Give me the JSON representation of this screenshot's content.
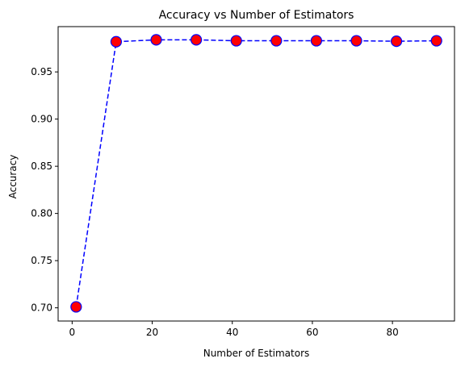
{
  "chart_data": {
    "type": "line",
    "title": "Accuracy vs Number of Estimators",
    "xlabel": "Number of Estimators",
    "ylabel": "Accuracy",
    "x": [
      1,
      11,
      21,
      31,
      41,
      51,
      61,
      71,
      81,
      91
    ],
    "series": [
      {
        "values": [
          0.701,
          0.982,
          0.984,
          0.984,
          0.983,
          0.983,
          0.983,
          0.983,
          0.9825,
          0.983
        ]
      }
    ],
    "xlim": [
      -3.5,
      95.5
    ],
    "ylim": [
      0.686,
      0.998
    ],
    "xticks": [
      0,
      20,
      40,
      60,
      80
    ],
    "yticks": [
      0.7,
      0.75,
      0.8,
      0.85,
      0.9,
      0.95
    ],
    "xtick_labels": [
      "0",
      "20",
      "40",
      "60",
      "80"
    ],
    "ytick_labels": [
      "0.70",
      "0.75",
      "0.80",
      "0.85",
      "0.90",
      "0.95"
    ],
    "grid": false,
    "line_color": "#0000ff",
    "line_style": "dashed",
    "marker_face_color": "#ff0000",
    "marker_edge_color": "#0000ff"
  }
}
